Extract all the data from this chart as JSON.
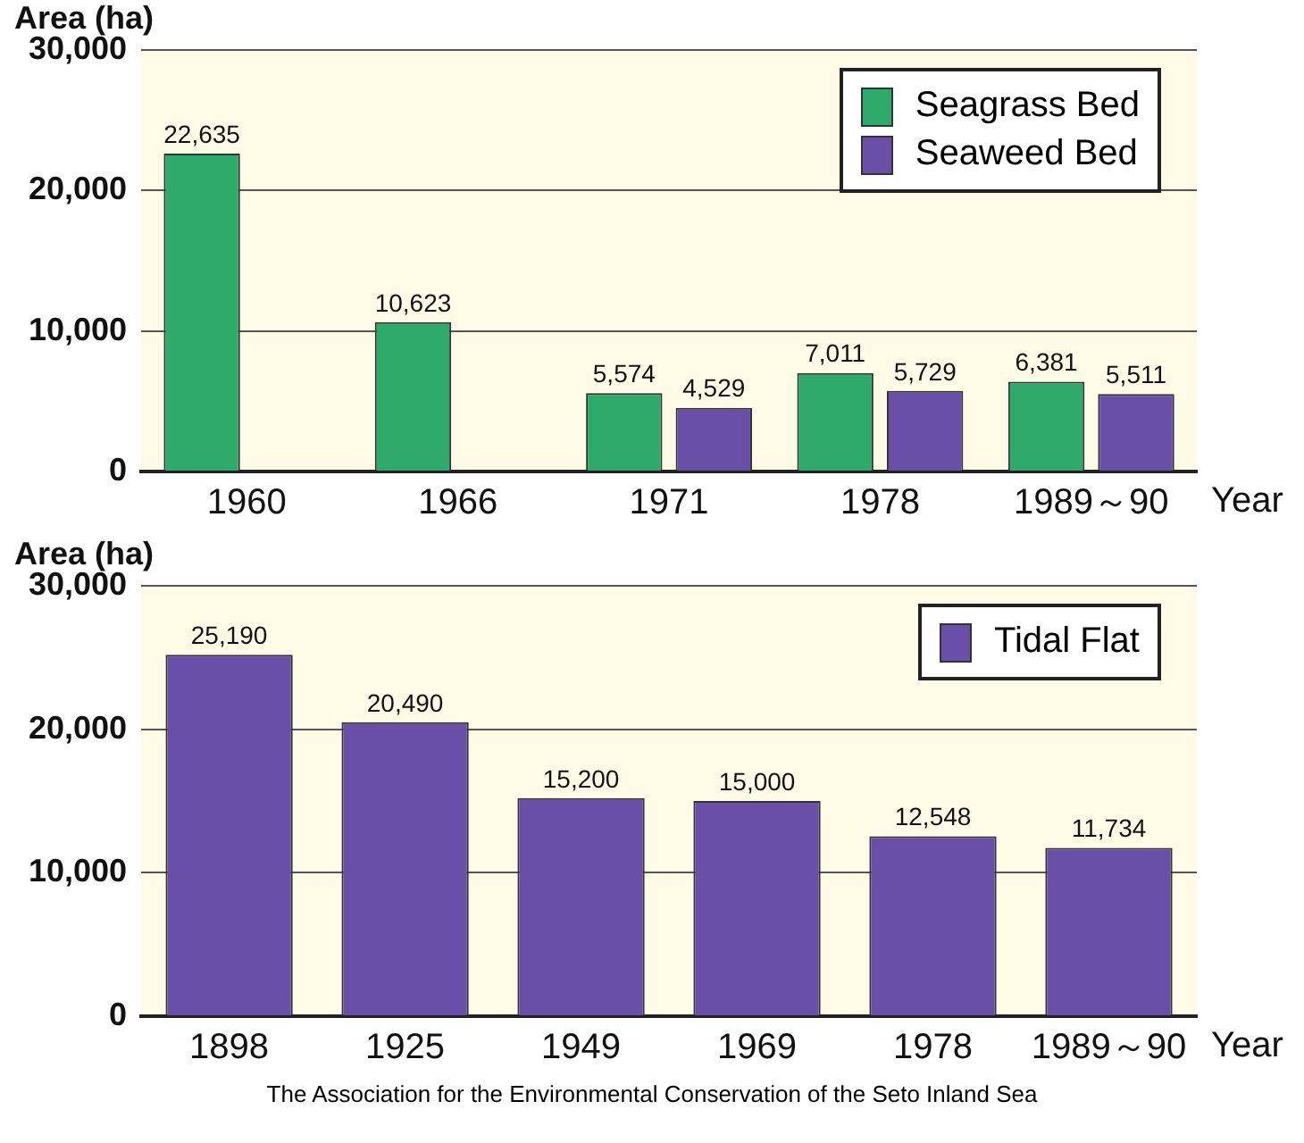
{
  "chart_data": [
    {
      "type": "bar",
      "ylabel": "Area (ha)",
      "xlabel": "Year",
      "categories": [
        "1960",
        "1966",
        "1971",
        "1978",
        "1989～90"
      ],
      "series": [
        {
          "name": "Seagrass Bed",
          "color": "#2eaa6a",
          "values": [
            22635,
            10623,
            5574,
            7011,
            6381
          ],
          "value_labels": [
            "22,635",
            "10,623",
            "5,574",
            "7,011",
            "6,381"
          ]
        },
        {
          "name": "Seaweed Bed",
          "color": "#6a4fa8",
          "values": [
            null,
            null,
            4529,
            5729,
            5511
          ],
          "value_labels": [
            null,
            null,
            "4,529",
            "5,729",
            "5,511"
          ]
        }
      ],
      "ylim": [
        0,
        30000
      ],
      "yticks": [
        {
          "value": 0,
          "label": "0"
        },
        {
          "value": 10000,
          "label": "10,000"
        },
        {
          "value": 20000,
          "label": "20,000"
        },
        {
          "value": 30000,
          "label": "30,000"
        }
      ],
      "grid": "y",
      "legend": "top right"
    },
    {
      "type": "bar",
      "ylabel": "Area (ha)",
      "xlabel": "Year",
      "categories": [
        "1898",
        "1925",
        "1949",
        "1969",
        "1978",
        "1989～90"
      ],
      "series": [
        {
          "name": "Tidal Flat",
          "color": "#6a4fa8",
          "values": [
            25190,
            20490,
            15200,
            15000,
            12548,
            11734
          ],
          "value_labels": [
            "25,190",
            "20,490",
            "15,200",
            "15,000",
            "12,548",
            "11,734"
          ]
        }
      ],
      "ylim": [
        0,
        30000
      ],
      "yticks": [
        {
          "value": 0,
          "label": "0"
        },
        {
          "value": 10000,
          "label": "10,000"
        },
        {
          "value": 20000,
          "label": "20,000"
        },
        {
          "value": 30000,
          "label": "30,000"
        }
      ],
      "grid": "y",
      "legend": "top right",
      "annotations": [
        "The Association for the Environmental Conservation of the Seto Inland Sea"
      ]
    }
  ]
}
